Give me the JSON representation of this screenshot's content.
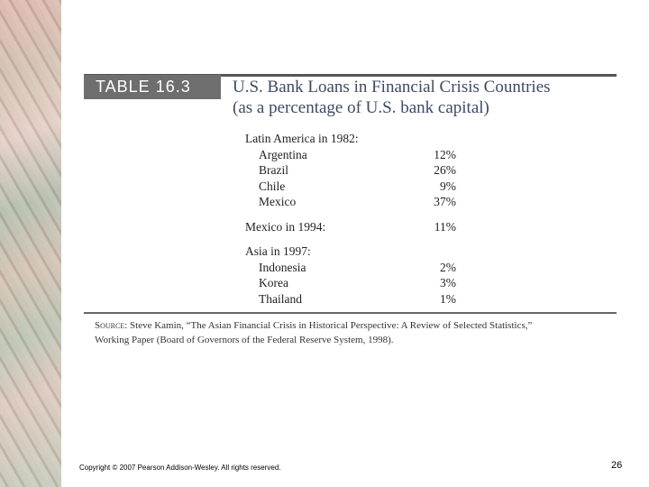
{
  "table": {
    "label": "TABLE 16.3",
    "title": [
      "U.S. Bank Loans in Financial Crisis Countries",
      "(as a percentage of U.S. bank capital)"
    ],
    "groups": [
      {
        "name": "Latin America in 1982:",
        "rows": [
          [
            "Argentina",
            "12%"
          ],
          [
            "Brazil",
            "26%"
          ],
          [
            "Chile",
            "9%"
          ],
          [
            "Mexico",
            "37%"
          ]
        ]
      },
      {
        "name": "Mexico in 1994:",
        "value": "11%"
      },
      {
        "name": "Asia in 1997:",
        "rows": [
          [
            "Indonesia",
            "2%"
          ],
          [
            "Korea",
            "3%"
          ],
          [
            "Thailand",
            "1%"
          ]
        ]
      }
    ],
    "source_label": "Source:",
    "source": [
      "Steve Kamin, “The Asian Financial Crisis in Historical Perspective: A Review of Selected Statistics,”",
      "Working Paper (Board of Governors of the Federal Reserve System, 1998)."
    ]
  },
  "footer": {
    "copyright": "Copyright © 2007 Pearson Addison-Wesley. All rights reserved.",
    "page": "26"
  }
}
